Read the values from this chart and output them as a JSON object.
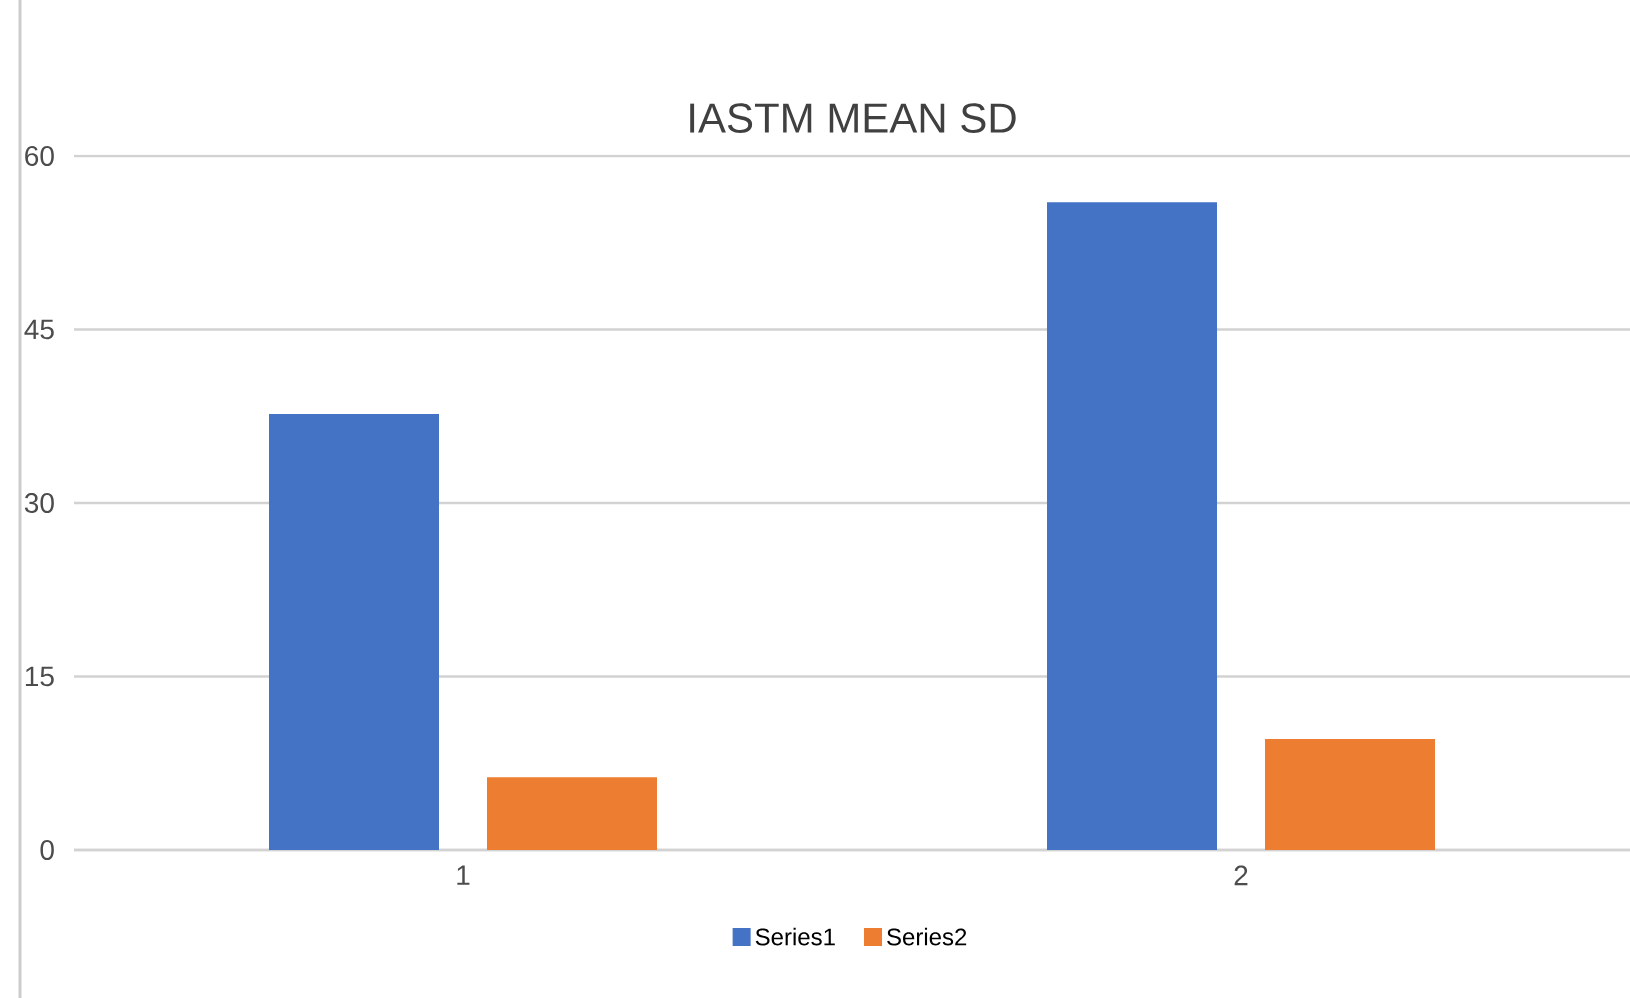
{
  "chart_data": {
    "type": "bar",
    "title": "IASTM MEAN SD",
    "categories": [
      "1",
      "2"
    ],
    "series": [
      {
        "name": "Series1",
        "color": "#4472c4",
        "values": [
          37.7,
          56.0
        ]
      },
      {
        "name": "Series2",
        "color": "#ed7d31",
        "values": [
          6.3,
          9.6
        ]
      }
    ],
    "ylim": [
      0,
      60
    ],
    "yticks": [
      0,
      15,
      30,
      45,
      60
    ],
    "grid": "y",
    "legend": "bottom"
  }
}
